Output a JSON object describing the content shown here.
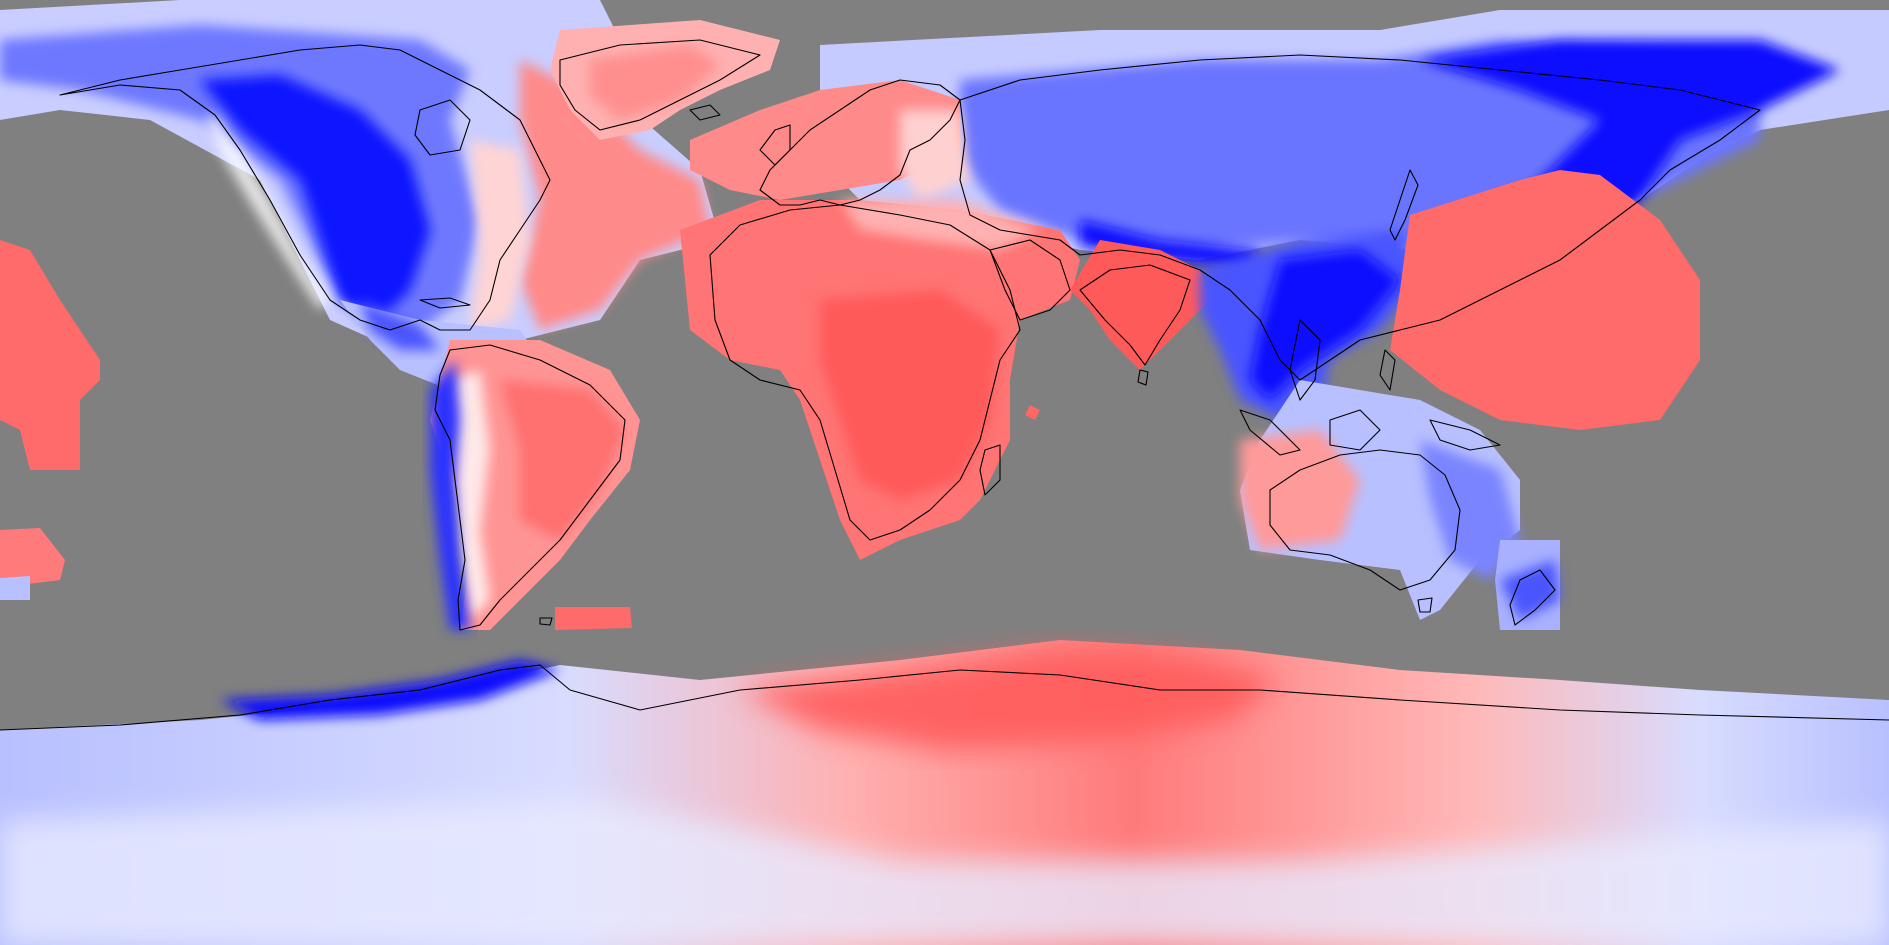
{
  "map": {
    "projection": "equirectangular",
    "extent": {
      "lon": [
        -180,
        180
      ],
      "lat": [
        -90,
        90
      ]
    },
    "legend": "none",
    "labels": [],
    "colors": {
      "no_data": "#808080",
      "strong_blue": "#0000ff",
      "mid_blue": "#4a55f0",
      "light_blue": "#c8ccff",
      "near_white": "#f2f0f6",
      "light_red": "#ffc0c0",
      "mid_red": "#ff8080",
      "strong_red": "#ff5555",
      "coastline": "#000000"
    },
    "layers": [
      "no-data-background",
      "diverging-field",
      "coastlines"
    ]
  }
}
